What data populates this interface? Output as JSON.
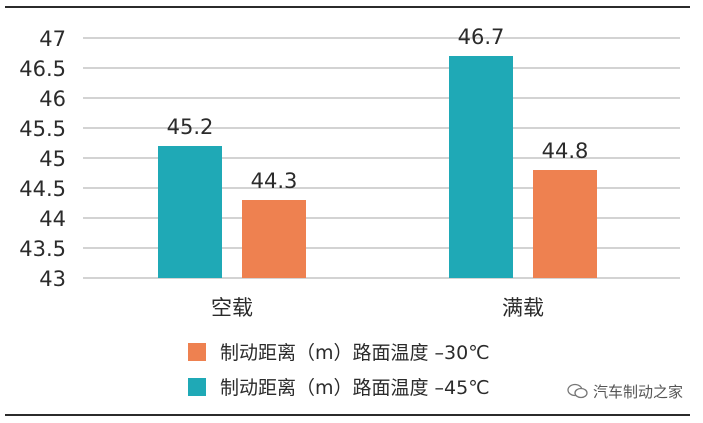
{
  "chart_data": {
    "type": "bar",
    "categories": [
      "空载",
      "满载"
    ],
    "series": [
      {
        "name": "制动距离（m）路面温度 –45℃",
        "values": [
          45.2,
          46.7
        ],
        "color": "#1fa9b6",
        "labels": [
          "45.2",
          "46.7"
        ]
      },
      {
        "name": "制动距离（m）路面温度 –30℃",
        "values": [
          44.3,
          44.8
        ],
        "color": "#ee8150",
        "labels": [
          "44.3",
          "44.8"
        ]
      }
    ],
    "yticks": [
      "47",
      "46.5",
      "46",
      "45.5",
      "45",
      "44.5",
      "44",
      "43.5",
      "43"
    ],
    "ylim": [
      43,
      47
    ],
    "grid": true,
    "legend_position": "bottom",
    "title": "",
    "xlabel": "",
    "ylabel": ""
  },
  "legend": [
    {
      "label": "制动距离（m）路面温度 –30℃",
      "color": "#ee8150"
    },
    {
      "label": "制动距离（m）路面温度 –45℃",
      "color": "#1fa9b6"
    }
  ],
  "watermark": {
    "text": "汽车制动之家",
    "icon": "wechat-icon"
  }
}
